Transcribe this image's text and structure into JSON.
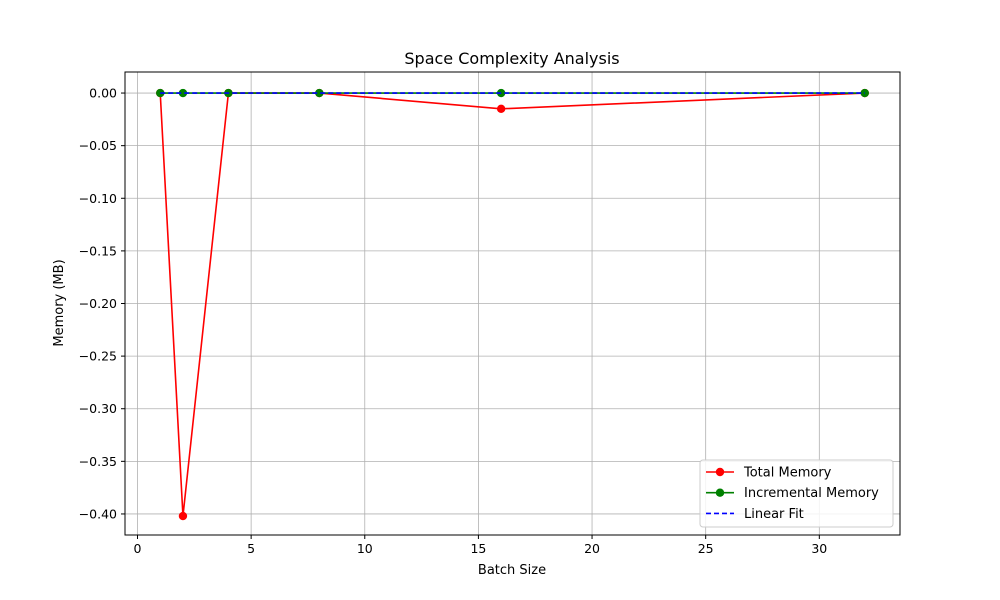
{
  "chart_data": {
    "type": "line",
    "title": "Space Complexity Analysis",
    "xlabel": "Batch Size",
    "ylabel": "Memory (MB)",
    "xlim": [
      -0.55,
      33.55
    ],
    "ylim": [
      -0.42,
      0.02
    ],
    "x_ticks": [
      0,
      5,
      10,
      15,
      20,
      25,
      30
    ],
    "y_ticks": [
      0.0,
      -0.05,
      -0.1,
      -0.15,
      -0.2,
      -0.25,
      -0.3,
      -0.35,
      -0.4
    ],
    "x_tick_labels": [
      "0",
      "5",
      "10",
      "15",
      "20",
      "25",
      "30"
    ],
    "y_tick_labels": [
      "0.00",
      "−0.05",
      "−0.10",
      "−0.15",
      "−0.20",
      "−0.25",
      "−0.30",
      "−0.35",
      "−0.40"
    ],
    "grid": true,
    "legend_position": "bottom-right",
    "x": [
      1,
      2,
      4,
      8,
      16,
      32
    ],
    "series": [
      {
        "name": "Total Memory",
        "values": [
          0.0,
          -0.402,
          0.0,
          0.0,
          -0.015,
          0.0
        ],
        "color": "#ff0000",
        "style": "solid",
        "marker": "circle"
      },
      {
        "name": "Incremental Memory",
        "values": [
          0.0,
          0.0,
          0.0,
          0.0,
          0.0,
          0.0
        ],
        "color": "#008000",
        "style": "solid",
        "marker": "circle"
      },
      {
        "name": "Linear Fit",
        "values": [
          0.0,
          0.0,
          0.0,
          0.0,
          0.0,
          0.0
        ],
        "color": "#0000ff",
        "style": "dashed",
        "marker": "none"
      }
    ]
  }
}
